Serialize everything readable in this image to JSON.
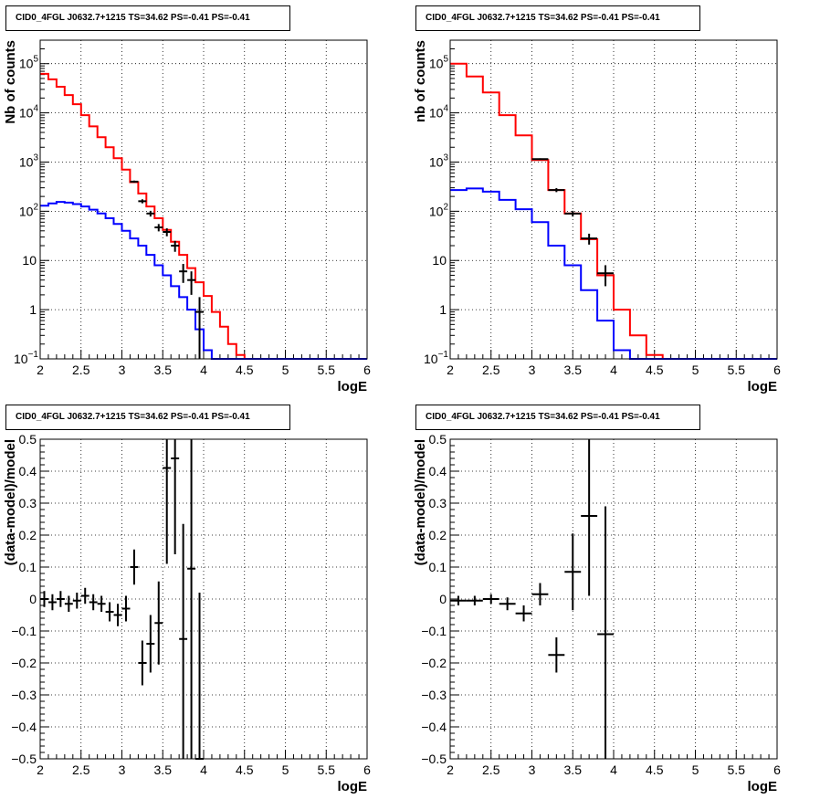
{
  "chart_data": [
    {
      "type": "histogram",
      "title": "CID0_4FGL J0632.7+1215 TS=34.62 PS=-0.41 PS=-0.41",
      "xlabel": "logE",
      "ylabel": "Nb of counts",
      "xlim": [
        2,
        6
      ],
      "ylim": [
        0.1,
        300000
      ],
      "log_y": true,
      "grid": true,
      "x_ticks": [
        "2",
        "2.5",
        "3",
        "3.5",
        "4",
        "4.5",
        "5",
        "5.5",
        "6"
      ],
      "y_ticks": [
        {
          "value": 0.1,
          "label": "10",
          "exp": "−1"
        },
        {
          "value": 1,
          "label": "1",
          "exp": ""
        },
        {
          "value": 10,
          "label": "10",
          "exp": ""
        },
        {
          "value": 100,
          "label": "10",
          "exp": "2"
        },
        {
          "value": 1000,
          "label": "10",
          "exp": "3"
        },
        {
          "value": 10000,
          "label": "10",
          "exp": "4"
        },
        {
          "value": 100000,
          "label": "10",
          "exp": "5"
        }
      ],
      "bin_edges": [
        2.0,
        2.1,
        2.2,
        2.3,
        2.4,
        2.5,
        2.6,
        2.7,
        2.8,
        2.9,
        3.0,
        3.1,
        3.2,
        3.3,
        3.4,
        3.5,
        3.6,
        3.7,
        3.8,
        3.9,
        4.0,
        4.1,
        4.2,
        4.3,
        4.4,
        4.5,
        4.6,
        4.7,
        4.8,
        4.9,
        5.0,
        5.1,
        5.2,
        5.3,
        5.4,
        5.5,
        5.6,
        5.7,
        5.8,
        5.9,
        6.0
      ],
      "series": [
        {
          "name": "",
          "kind": "hist",
          "color": "#ff0000",
          "values": [
            62000,
            48000,
            34000,
            23000,
            15000,
            9000,
            5300,
            3200,
            2000,
            1200,
            700,
            390,
            230,
            125,
            72,
            42,
            24,
            13,
            7,
            3.6,
            1.9,
            0.9,
            0.45,
            0.2,
            0.12,
            0.1,
            0.1,
            0.1,
            0.1,
            0.1,
            0.1,
            0.1,
            0.1,
            0.1,
            0.1,
            0.1,
            0.1,
            0.1,
            0.1,
            0.1
          ]
        },
        {
          "name": "",
          "kind": "hist",
          "color": "#0000ff",
          "values": [
            130,
            145,
            155,
            150,
            140,
            125,
            108,
            90,
            72,
            55,
            40,
            28,
            20,
            13,
            8,
            5,
            3,
            1.8,
            1,
            0.4,
            0.15,
            0.1,
            0.1,
            0.1,
            0.1,
            0.1,
            0.1,
            0.1,
            0.1,
            0.1,
            0.1,
            0.1,
            0.1,
            0.1,
            0.1,
            0.1,
            0.1,
            0.1,
            0.1,
            0.1
          ]
        },
        {
          "name": "",
          "kind": "points",
          "color": "#000000",
          "x": [
            3.15,
            3.25,
            3.35,
            3.45,
            3.55,
            3.65,
            3.75,
            3.85,
            3.95
          ],
          "y": [
            400,
            160,
            90,
            47,
            38,
            20,
            6,
            4,
            0.9
          ],
          "yerr_low": [
            20,
            15,
            12,
            8,
            7,
            5,
            2.5,
            2,
            0.85
          ],
          "yerr_high": [
            20,
            15,
            12,
            8,
            7,
            5,
            2.5,
            2,
            0.9
          ]
        }
      ]
    },
    {
      "type": "histogram",
      "title": "CID0_4FGL J0632.7+1215 TS=34.62 PS=-0.41 PS=-0.41",
      "xlabel": "logE",
      "ylabel": "nb of counts",
      "xlim": [
        2,
        6
      ],
      "ylim": [
        0.1,
        300000
      ],
      "log_y": true,
      "grid": true,
      "x_ticks": [
        "2",
        "2.5",
        "3",
        "3.5",
        "4",
        "4.5",
        "5",
        "5.5",
        "6"
      ],
      "y_ticks": [
        {
          "value": 0.1,
          "label": "10",
          "exp": "−1"
        },
        {
          "value": 1,
          "label": "1",
          "exp": ""
        },
        {
          "value": 10,
          "label": "10",
          "exp": ""
        },
        {
          "value": 100,
          "label": "10",
          "exp": "2"
        },
        {
          "value": 1000,
          "label": "10",
          "exp": "3"
        },
        {
          "value": 10000,
          "label": "10",
          "exp": "4"
        },
        {
          "value": 100000,
          "label": "10",
          "exp": "5"
        }
      ],
      "bin_edges": [
        2.0,
        2.2,
        2.4,
        2.6,
        2.8,
        3.0,
        3.2,
        3.4,
        3.6,
        3.8,
        4.0,
        4.2,
        4.4,
        4.6,
        4.8,
        5.0,
        5.2,
        5.4,
        5.6,
        5.8,
        6.0
      ],
      "series": [
        {
          "name": "",
          "kind": "hist",
          "color": "#ff0000",
          "values": [
            100000,
            55000,
            26000,
            9000,
            3500,
            1100,
            270,
            90,
            27,
            5,
            1,
            0.3,
            0.12,
            0.1,
            0.1,
            0.1,
            0.1,
            0.1,
            0.1,
            0.1
          ]
        },
        {
          "name": "",
          "kind": "hist",
          "color": "#0000ff",
          "values": [
            270,
            290,
            250,
            170,
            110,
            60,
            20,
            8,
            2.5,
            0.6,
            0.15,
            0.1,
            0.1,
            0.1,
            0.1,
            0.1,
            0.1,
            0.1,
            0.1,
            0.1
          ]
        },
        {
          "name": "",
          "kind": "points",
          "color": "#000000",
          "x": [
            3.1,
            3.3,
            3.5,
            3.7,
            3.9
          ],
          "y": [
            1150,
            270,
            90,
            28,
            5.5
          ],
          "yerr_low": [
            40,
            25,
            12,
            7,
            2.5
          ],
          "yerr_high": [
            40,
            25,
            12,
            7,
            2.5
          ]
        }
      ]
    },
    {
      "type": "scatter",
      "title": "CID0_4FGL J0632.7+1215 TS=34.62 PS=-0.41 PS=-0.41",
      "xlabel": "logE",
      "ylabel": "(data-model)/model",
      "xlim": [
        2,
        6
      ],
      "ylim": [
        -0.5,
        0.5
      ],
      "log_y": false,
      "grid": true,
      "x_ticks": [
        "2",
        "2.5",
        "3",
        "3.5",
        "4",
        "4.5",
        "5",
        "5.5",
        "6"
      ],
      "y_ticks": [
        {
          "value": -0.5,
          "label": "−0.5",
          "exp": ""
        },
        {
          "value": -0.4,
          "label": "−0.4",
          "exp": ""
        },
        {
          "value": -0.3,
          "label": "−0.3",
          "exp": ""
        },
        {
          "value": -0.2,
          "label": "−0.2",
          "exp": ""
        },
        {
          "value": -0.1,
          "label": "−0.1",
          "exp": ""
        },
        {
          "value": 0,
          "label": "0",
          "exp": ""
        },
        {
          "value": 0.1,
          "label": "0.1",
          "exp": ""
        },
        {
          "value": 0.2,
          "label": "0.2",
          "exp": ""
        },
        {
          "value": 0.3,
          "label": "0.3",
          "exp": ""
        },
        {
          "value": 0.4,
          "label": "0.4",
          "exp": ""
        },
        {
          "value": 0.5,
          "label": "0.5",
          "exp": ""
        }
      ],
      "series": [
        {
          "name": "",
          "kind": "points",
          "color": "#000000",
          "xhalf": 0.05,
          "x": [
            2.05,
            2.15,
            2.25,
            2.35,
            2.45,
            2.55,
            2.65,
            2.75,
            2.85,
            2.95,
            3.05,
            3.15,
            3.25,
            3.35,
            3.45,
            3.55,
            3.65,
            3.75,
            3.85,
            3.95
          ],
          "y": [
            0.0,
            -0.01,
            0.0,
            -0.015,
            -0.005,
            0.01,
            -0.01,
            -0.015,
            -0.04,
            -0.05,
            -0.03,
            0.1,
            -0.2,
            -0.14,
            -0.075,
            0.41,
            0.44,
            -0.125,
            0.095,
            -0.5
          ],
          "yerr_low": [
            0.025,
            0.025,
            0.025,
            0.025,
            0.025,
            0.025,
            0.025,
            0.025,
            0.03,
            0.035,
            0.04,
            0.055,
            0.07,
            0.09,
            0.13,
            0.3,
            0.3,
            0.6,
            0.6,
            0.6
          ],
          "yerr_high": [
            0.025,
            0.025,
            0.025,
            0.025,
            0.025,
            0.025,
            0.025,
            0.025,
            0.03,
            0.035,
            0.04,
            0.055,
            0.07,
            0.09,
            0.13,
            0.3,
            0.3,
            0.36,
            0.6,
            0.52
          ]
        }
      ]
    },
    {
      "type": "scatter",
      "title": "CID0_4FGL J0632.7+1215 TS=34.62 PS=-0.41 PS=-0.41",
      "xlabel": "logE",
      "ylabel": "(data-model)/model",
      "xlim": [
        2,
        6
      ],
      "ylim": [
        -0.5,
        0.5
      ],
      "log_y": false,
      "grid": true,
      "x_ticks": [
        "2",
        "2.5",
        "3",
        "3.5",
        "4",
        "4.5",
        "5",
        "5.5",
        "6"
      ],
      "y_ticks": [
        {
          "value": -0.5,
          "label": "−0.5",
          "exp": ""
        },
        {
          "value": -0.4,
          "label": "−0.4",
          "exp": ""
        },
        {
          "value": -0.3,
          "label": "−0.3",
          "exp": ""
        },
        {
          "value": -0.2,
          "label": "−0.2",
          "exp": ""
        },
        {
          "value": -0.1,
          "label": "−0.1",
          "exp": ""
        },
        {
          "value": 0,
          "label": "0",
          "exp": ""
        },
        {
          "value": 0.1,
          "label": "0.1",
          "exp": ""
        },
        {
          "value": 0.2,
          "label": "0.2",
          "exp": ""
        },
        {
          "value": 0.3,
          "label": "0.3",
          "exp": ""
        },
        {
          "value": 0.4,
          "label": "0.4",
          "exp": ""
        },
        {
          "value": 0.5,
          "label": "0.5",
          "exp": ""
        }
      ],
      "series": [
        {
          "name": "",
          "kind": "points",
          "color": "#000000",
          "xhalf": 0.1,
          "x": [
            2.1,
            2.3,
            2.5,
            2.7,
            2.9,
            3.1,
            3.3,
            3.5,
            3.7,
            3.9
          ],
          "y": [
            -0.005,
            -0.005,
            0.0,
            -0.015,
            -0.045,
            0.015,
            -0.175,
            0.085,
            0.26,
            -0.11
          ],
          "yerr_low": [
            0.015,
            0.015,
            0.015,
            0.02,
            0.025,
            0.035,
            0.055,
            0.12,
            0.25,
            0.6
          ],
          "yerr_high": [
            0.015,
            0.015,
            0.015,
            0.02,
            0.025,
            0.035,
            0.055,
            0.12,
            0.3,
            0.4
          ]
        }
      ]
    }
  ]
}
